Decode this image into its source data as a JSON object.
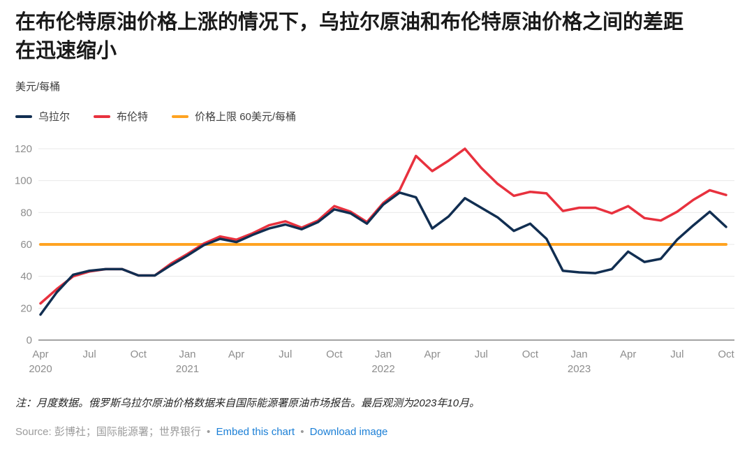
{
  "header": {
    "title": "在布伦特原油价格上涨的情况下，乌拉尔原油和布伦特原油价格之间的差距在迅速缩小",
    "unit_label": "美元/每桶"
  },
  "chart_data": {
    "type": "line",
    "title": "在布伦特原油价格上涨的情况下，乌拉尔原油和布伦特原油价格之间的差距在迅速缩小",
    "ylabel": "美元/每桶",
    "ylim": [
      0,
      120
    ],
    "yticks": [
      0,
      20,
      40,
      60,
      80,
      100,
      120
    ],
    "grid": "horizontal",
    "legend_position": "top-left",
    "x": [
      "2020-04",
      "2020-05",
      "2020-06",
      "2020-07",
      "2020-08",
      "2020-09",
      "2020-10",
      "2020-11",
      "2020-12",
      "2021-01",
      "2021-02",
      "2021-03",
      "2021-04",
      "2021-05",
      "2021-06",
      "2021-07",
      "2021-08",
      "2021-09",
      "2021-10",
      "2021-11",
      "2021-12",
      "2022-01",
      "2022-02",
      "2022-03",
      "2022-04",
      "2022-05",
      "2022-06",
      "2022-07",
      "2022-08",
      "2022-09",
      "2022-10",
      "2022-11",
      "2022-12",
      "2023-01",
      "2023-02",
      "2023-03",
      "2023-04",
      "2023-05",
      "2023-06",
      "2023-07",
      "2023-08",
      "2023-09",
      "2023-10"
    ],
    "xticks": [
      {
        "index": 0,
        "month": "Apr",
        "year": "2020"
      },
      {
        "index": 3,
        "month": "Jul",
        "year": ""
      },
      {
        "index": 6,
        "month": "Oct",
        "year": ""
      },
      {
        "index": 9,
        "month": "Jan",
        "year": "2021"
      },
      {
        "index": 12,
        "month": "Apr",
        "year": ""
      },
      {
        "index": 15,
        "month": "Jul",
        "year": ""
      },
      {
        "index": 18,
        "month": "Oct",
        "year": ""
      },
      {
        "index": 21,
        "month": "Jan",
        "year": "2022"
      },
      {
        "index": 24,
        "month": "Apr",
        "year": ""
      },
      {
        "index": 27,
        "month": "Jul",
        "year": ""
      },
      {
        "index": 30,
        "month": "Oct",
        "year": ""
      },
      {
        "index": 33,
        "month": "Jan",
        "year": "2023"
      },
      {
        "index": 36,
        "month": "Apr",
        "year": ""
      },
      {
        "index": 39,
        "month": "Jul",
        "year": ""
      },
      {
        "index": 42,
        "month": "Oct",
        "year": ""
      }
    ],
    "series": [
      {
        "name": "乌拉尔",
        "color": "#112e51",
        "values": [
          16,
          30,
          41,
          43.5,
          44.5,
          44.5,
          40.5,
          40.5,
          47,
          53,
          59.5,
          63.5,
          61.5,
          66,
          70,
          72.5,
          69.5,
          74,
          82,
          79.5,
          73,
          85,
          92.5,
          89.5,
          70,
          77.5,
          89,
          83,
          77,
          68.5,
          73,
          63.5,
          43.5,
          42.5,
          42,
          44.5,
          55.5,
          49,
          51,
          63,
          72,
          80.5,
          71
        ]
      },
      {
        "name": "布伦特",
        "color": "#e8313e",
        "values": [
          23,
          32,
          40,
          43,
          44.5,
          44.5,
          40.5,
          40.5,
          48,
          54,
          60.5,
          65,
          63,
          67,
          72,
          74.5,
          70.5,
          75,
          84,
          80.5,
          74,
          86,
          94,
          115.5,
          106,
          112.5,
          120,
          108,
          98,
          90.5,
          93,
          92,
          81,
          83,
          83,
          79.5,
          84,
          76.5,
          75,
          80.5,
          88,
          94,
          91
        ]
      }
    ],
    "cap_line": {
      "label": "价格上限 60美元/每桶",
      "color": "#ffa321",
      "value": 60
    },
    "axis_colors": {
      "tick_label": "#8d8d8d",
      "gridline": "#e8e8e8",
      "baseline": "#a3a3a3"
    }
  },
  "footer": {
    "note": "注：月度数据。俄罗斯乌拉尔原油价格数据来自国际能源署原油市场报告。最后观测为2023年10月。",
    "source": "Source: 彭博社；国际能源署；世界银行",
    "separator": "•",
    "links": {
      "embed": "Embed this chart",
      "download": "Download image"
    }
  }
}
